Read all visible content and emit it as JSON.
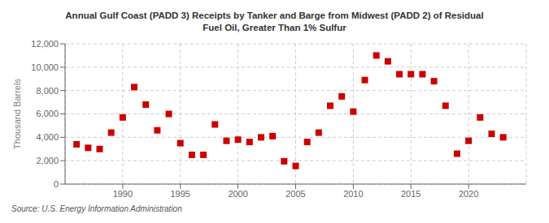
{
  "chart_data": {
    "type": "scatter",
    "title": "Annual Gulf Coast (PADD 3) Receipts by Tanker and Barge from Midwest (PADD 2) of Residual\nFuel Oil, Greater Than 1% Sulfur",
    "ylabel": "Thousand Barrels",
    "annotations": [
      "Source: U.S. Energy Information Administration"
    ],
    "x": [
      1986,
      1987,
      1988,
      1989,
      1990,
      1991,
      1992,
      1993,
      1994,
      1995,
      1996,
      1997,
      1998,
      1999,
      2000,
      2001,
      2002,
      2003,
      2004,
      2005,
      2006,
      2007,
      2008,
      2009,
      2010,
      2011,
      2012,
      2013,
      2014,
      2015,
      2016,
      2017,
      2018,
      2019,
      2020,
      2021,
      2022,
      2023
    ],
    "values": [
      3400,
      3100,
      3000,
      4400,
      5700,
      8300,
      6800,
      4600,
      6000,
      3500,
      2500,
      2500,
      5100,
      3700,
      3800,
      3600,
      4000,
      4100,
      1950,
      1550,
      3600,
      4400,
      6700,
      7500,
      6200,
      8900,
      11000,
      10500,
      9400,
      9400,
      9400,
      8800,
      6700,
      2600,
      3700,
      5700,
      4300,
      4000
    ],
    "color": "#cc0000",
    "marker": "square",
    "xlim": [
      1985,
      2025
    ],
    "xticks": [
      1990,
      1995,
      2000,
      2005,
      2010,
      2015,
      2020
    ],
    "ylim": [
      0,
      12000
    ],
    "yticks": [
      0,
      {
        "value": 2000,
        "label": "2,000"
      },
      {
        "value": 4000,
        "label": "4,000"
      },
      {
        "value": 6000,
        "label": "6,000"
      },
      {
        "value": 8000,
        "label": "8,000"
      },
      {
        "value": 10000,
        "label": "10,000"
      },
      {
        "value": 12000,
        "label": "12,000"
      }
    ],
    "grid": true
  }
}
